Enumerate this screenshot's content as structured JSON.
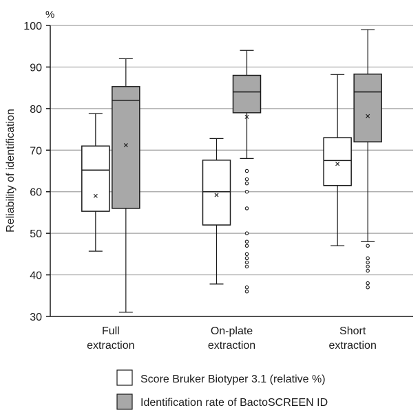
{
  "chart_data": {
    "type": "box",
    "title": "",
    "ylabel": "Reliability of identification",
    "yunit": "%",
    "ylim": [
      30,
      100
    ],
    "yticks": [
      30,
      40,
      50,
      60,
      70,
      80,
      90,
      100
    ],
    "grid": true,
    "legend_position": "bottom",
    "categories": [
      "Full extraction",
      "On-plate extraction",
      "Short extraction"
    ],
    "category_lines": [
      [
        "Full",
        "extraction"
      ],
      [
        "On-plate",
        "extraction"
      ],
      [
        "Short",
        "extraction"
      ]
    ],
    "series": [
      {
        "name": "Score Bruker Biotyper 3.1 (relative %)",
        "color": "#ffffff",
        "boxes": [
          {
            "whisker_low": 45.7,
            "q1": 55.3,
            "median": 65.2,
            "q3": 71.0,
            "whisker_high": 78.8,
            "mean": 59.0,
            "outliers": []
          },
          {
            "whisker_low": 37.8,
            "q1": 52.0,
            "median": 60.0,
            "q3": 67.6,
            "whisker_high": 72.8,
            "mean": 59.2,
            "outliers": []
          },
          {
            "whisker_low": 47.0,
            "q1": 61.5,
            "median": 67.5,
            "q3": 73.0,
            "whisker_high": 88.2,
            "mean": 66.7,
            "outliers": []
          }
        ]
      },
      {
        "name": "Identification rate of BactoSCREEN ID",
        "color": "#a8a8a8",
        "boxes": [
          {
            "whisker_low": 31.0,
            "q1": 56.0,
            "median": 82.0,
            "q3": 85.3,
            "whisker_high": 92.0,
            "mean": 71.2,
            "outliers": []
          },
          {
            "whisker_low": 68.0,
            "q1": 79.0,
            "median": 84.0,
            "q3": 88.0,
            "whisker_high": 94.0,
            "mean": 78.0,
            "outliers": [
              65.0,
              63.0,
              62.0,
              60.0,
              56.0,
              50.0,
              48.0,
              47.0,
              45.0,
              44.0,
              43.0,
              42.0,
              37.0,
              36.0
            ]
          },
          {
            "whisker_low": 48.0,
            "q1": 72.0,
            "median": 84.0,
            "q3": 88.3,
            "whisker_high": 99.0,
            "mean": 78.2,
            "outliers": [
              47.0,
              44.0,
              43.0,
              42.0,
              41.0,
              38.0,
              37.0
            ]
          }
        ]
      }
    ]
  }
}
